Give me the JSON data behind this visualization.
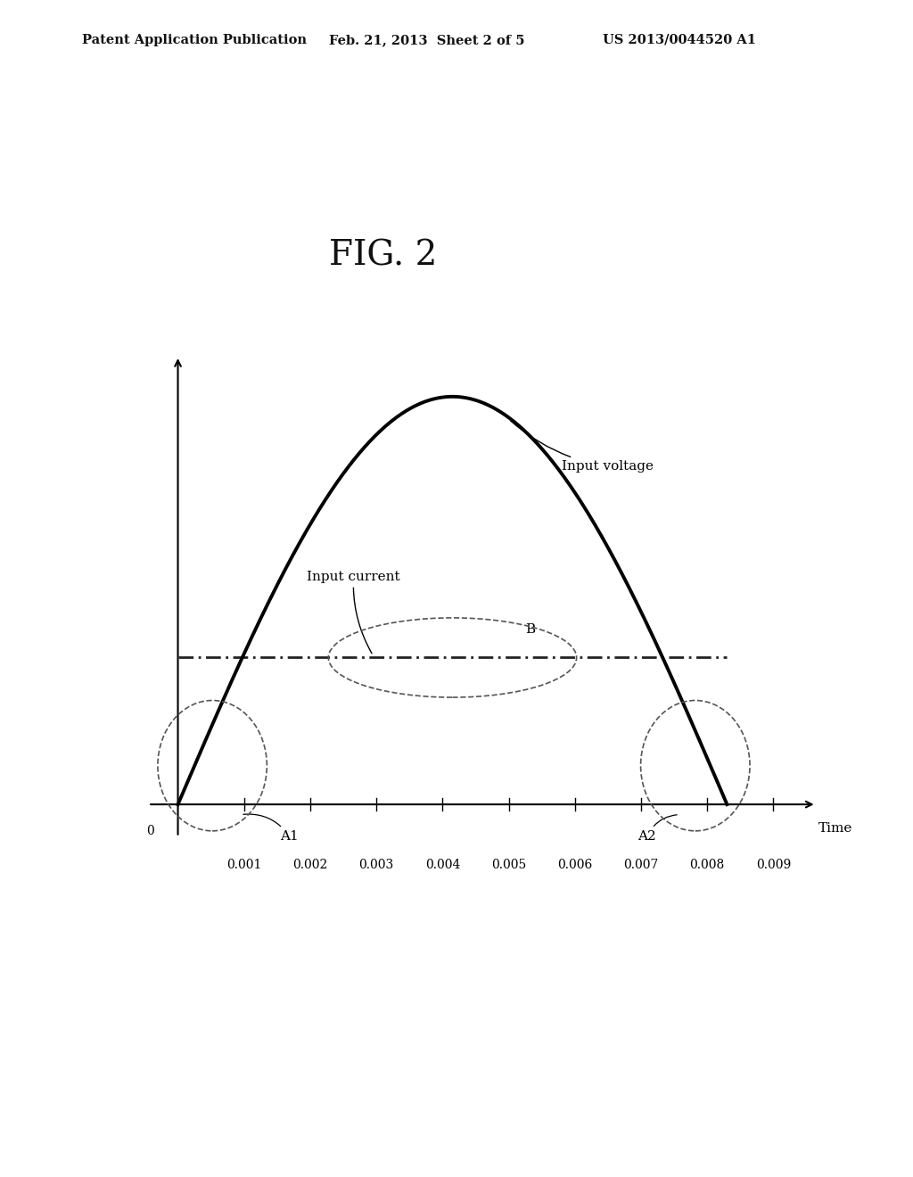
{
  "title": "FIG. 2",
  "patent_header_left": "Patent Application Publication",
  "patent_header_center": "Feb. 21, 2013  Sheet 2 of 5",
  "patent_header_right": "US 2013/0044520 A1",
  "xlabel": "Time",
  "x_ticks": [
    0.001,
    0.002,
    0.003,
    0.004,
    0.005,
    0.006,
    0.007,
    0.008,
    0.009
  ],
  "x_tick_labels": [
    "0.001",
    "0.002",
    "0.003",
    "0.004",
    "0.005",
    "0.006",
    "0.007",
    "0.008",
    "0.009"
  ],
  "voltage_label": "Input voltage",
  "current_label": "Input current",
  "label_A1": "A1",
  "label_A2": "A2",
  "label_B": "B",
  "background_color": "#ffffff",
  "voltage_period": 0.0083,
  "current_flat_value": 0.36,
  "voltage_peak": 1.0
}
